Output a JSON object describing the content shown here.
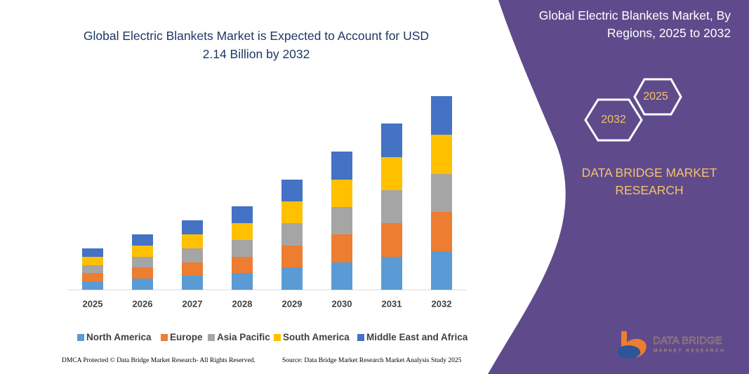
{
  "chart_data": {
    "type": "stacked-bar",
    "title": "Global Electric Blankets Market is Expected to Account for USD 2.14 Billion by 2032",
    "categories": [
      "2025",
      "2026",
      "2027",
      "2028",
      "2029",
      "2030",
      "2031",
      "2032"
    ],
    "series": [
      {
        "name": "North America",
        "color": "#5b9bd5",
        "values": [
          12,
          16,
          20,
          24,
          32,
          39,
          47,
          55
        ]
      },
      {
        "name": "Europe",
        "color": "#ed7d31",
        "values": [
          12,
          16,
          19,
          23,
          31,
          40,
          48,
          56
        ]
      },
      {
        "name": "Asia Pacific",
        "color": "#a5a5a5",
        "values": [
          11,
          15,
          20,
          24,
          32,
          39,
          47,
          54
        ]
      },
      {
        "name": "South America",
        "color": "#ffc000",
        "values": [
          12,
          16,
          20,
          24,
          31,
          39,
          47,
          56
        ]
      },
      {
        "name": "Middle East and Africa",
        "color": "#4472c4",
        "values": [
          12,
          16,
          20,
          24,
          31,
          40,
          48,
          55
        ]
      }
    ],
    "ylim": [
      0,
      280
    ]
  },
  "panel": {
    "title": "Global Electric Blankets Market, By Regions, 2025 to 2032",
    "hexagons": [
      "2025",
      "2032"
    ],
    "brand": "DATA BRIDGE MARKET RESEARCH",
    "logo": [
      "DATA BRIDGE",
      "MARKET RESEARCH"
    ]
  },
  "footer": {
    "left": "DMCA Protected © Data Bridge Market Research- All Rights Reserved.",
    "right": "Source: Data Bridge Market Research Market Analysis Study 2025"
  }
}
